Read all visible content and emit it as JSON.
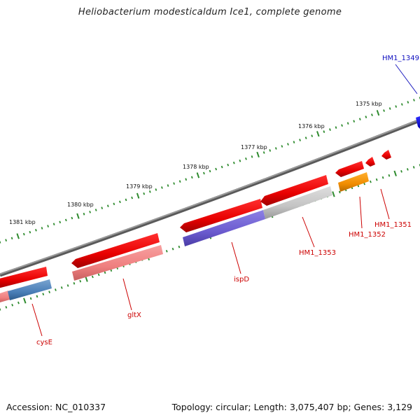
{
  "title": "Heliobacterium modesticaldum Ice1, complete genome",
  "footer": {
    "accession": "Accession: NC_010337",
    "summary": "Topology: circular; Length: 3,075,407 bp; Genes: 3,129"
  },
  "scale": {
    "unit": "kbp",
    "labels": [
      "1375 kbp",
      "1376 kbp",
      "1377 kbp",
      "1378 kbp",
      "1379 kbp",
      "1380 kbp",
      "1381 kbp"
    ],
    "tick_color": "#2e8b2e"
  },
  "backbone_color": "#808080",
  "genes": [
    {
      "name": "HM1_1349",
      "color": "#1010d0"
    },
    {
      "name": "HM1_1351",
      "color": "#cc0000"
    },
    {
      "name": "HM1_1352",
      "color": "#cc0000"
    },
    {
      "name": "HM1_1353",
      "color": "#cc0000"
    },
    {
      "name": "ispD",
      "color": "#cc0000"
    },
    {
      "name": "gltX",
      "color": "#cc0000"
    },
    {
      "name": "cysE",
      "color": "#cc0000"
    }
  ]
}
